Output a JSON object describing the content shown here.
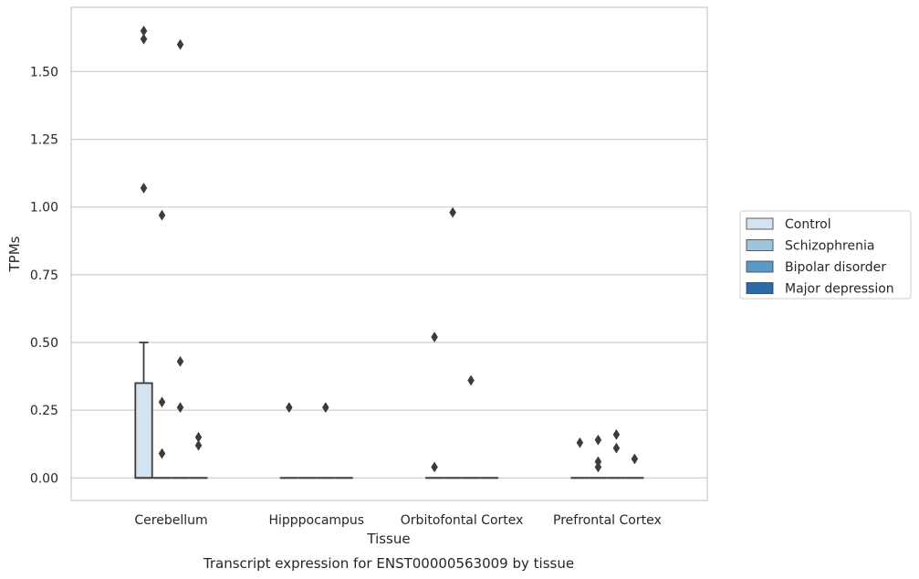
{
  "chart_data": {
    "type": "box",
    "title": "Transcript expression for ENST00000563009 by tissue",
    "xlabel": "Tissue",
    "ylabel": "TPMs",
    "ylim": [
      -0.08,
      1.74
    ],
    "yticks": [
      0.0,
      0.25,
      0.5,
      0.75,
      1.0,
      1.25,
      1.5
    ],
    "ytick_labels": [
      "0.00",
      "0.25",
      "0.50",
      "0.75",
      "1.00",
      "1.25",
      "1.50"
    ],
    "grid": "horizontal",
    "legend_position": "right-outside",
    "categories": [
      "Cerebellum",
      "Hipppocampus",
      "Orbitofontal Cortex",
      "Prefrontal Cortex"
    ],
    "series": [
      {
        "name": "Control",
        "color": "#d4e3f0",
        "boxes": [
          {
            "q1": 0.0,
            "median": 0.0,
            "q3": 0.35,
            "whisker_low": 0.0,
            "whisker_high": 0.5
          },
          {
            "q1": 0.0,
            "median": 0.0,
            "q3": 0.0,
            "whisker_low": 0.0,
            "whisker_high": 0.0
          },
          {
            "q1": 0.0,
            "median": 0.0,
            "q3": 0.0,
            "whisker_low": 0.0,
            "whisker_high": 0.0
          },
          {
            "q1": 0.0,
            "median": 0.0,
            "q3": 0.0,
            "whisker_low": 0.0,
            "whisker_high": 0.0
          }
        ],
        "outliers": [
          [
            1.65,
            1.62,
            1.07
          ],
          [
            0.26
          ],
          [
            0.04,
            0.52
          ],
          [
            0.13
          ]
        ]
      },
      {
        "name": "Schizophrenia",
        "color": "#9cc4dd",
        "boxes": [
          {
            "q1": 0.0,
            "median": 0.0,
            "q3": 0.0,
            "whisker_low": 0.0,
            "whisker_high": 0.0
          },
          {
            "q1": 0.0,
            "median": 0.0,
            "q3": 0.0,
            "whisker_low": 0.0,
            "whisker_high": 0.0
          },
          {
            "q1": 0.0,
            "median": 0.0,
            "q3": 0.0,
            "whisker_low": 0.0,
            "whisker_high": 0.0
          },
          {
            "q1": 0.0,
            "median": 0.0,
            "q3": 0.0,
            "whisker_low": 0.0,
            "whisker_high": 0.0
          }
        ],
        "outliers": [
          [
            0.97,
            0.28,
            0.09
          ],
          [],
          [
            0.98
          ],
          [
            0.14,
            0.06,
            0.04
          ]
        ]
      },
      {
        "name": "Bipolar disorder",
        "color": "#5b9ac8",
        "boxes": [
          {
            "q1": 0.0,
            "median": 0.0,
            "q3": 0.0,
            "whisker_low": 0.0,
            "whisker_high": 0.0
          },
          {
            "q1": 0.0,
            "median": 0.0,
            "q3": 0.0,
            "whisker_low": 0.0,
            "whisker_high": 0.0
          },
          {
            "q1": 0.0,
            "median": 0.0,
            "q3": 0.0,
            "whisker_low": 0.0,
            "whisker_high": 0.0
          },
          {
            "q1": 0.0,
            "median": 0.0,
            "q3": 0.0,
            "whisker_low": 0.0,
            "whisker_high": 0.0
          }
        ],
        "outliers": [
          [
            1.6,
            0.43,
            0.26
          ],
          [
            0.26
          ],
          [
            0.36
          ],
          [
            0.16,
            0.11
          ]
        ]
      },
      {
        "name": "Major depression",
        "color": "#2a6aa6",
        "boxes": [
          {
            "q1": 0.0,
            "median": 0.0,
            "q3": 0.0,
            "whisker_low": 0.0,
            "whisker_high": 0.0
          },
          {
            "q1": 0.0,
            "median": 0.0,
            "q3": 0.0,
            "whisker_low": 0.0,
            "whisker_high": 0.0
          },
          {
            "q1": 0.0,
            "median": 0.0,
            "q3": 0.0,
            "whisker_low": 0.0,
            "whisker_high": 0.0
          },
          {
            "q1": 0.0,
            "median": 0.0,
            "q3": 0.0,
            "whisker_low": 0.0,
            "whisker_high": 0.0
          }
        ],
        "outliers": [
          [
            0.15,
            0.12
          ],
          [],
          [],
          [
            0.07
          ]
        ]
      }
    ]
  }
}
